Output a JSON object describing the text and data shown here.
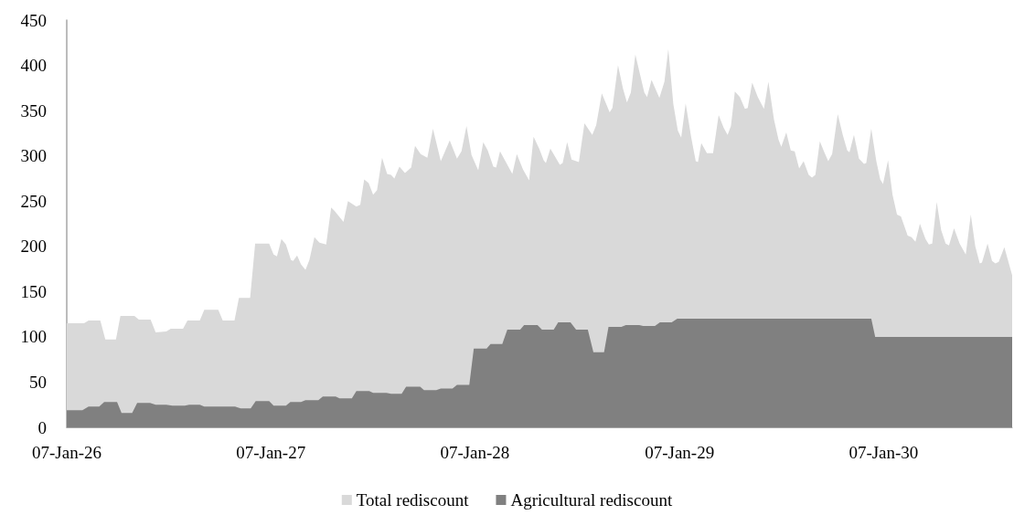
{
  "chart_data": {
    "type": "area",
    "series": [
      {
        "name": "Total rediscount",
        "color": "#d9d9d9",
        "x": [
          "1926-01-07",
          "1926-02-07",
          "1926-02-15",
          "1926-03-08",
          "1926-03-17",
          "1926-04-05",
          "1926-04-13",
          "1926-05-08",
          "1926-05-16",
          "1926-06-06",
          "1926-06-15",
          "1926-07-04",
          "1926-07-12",
          "1926-08-03",
          "1926-08-11",
          "1926-09-02",
          "1926-09-10",
          "1926-10-05",
          "1926-10-13",
          "1926-11-03",
          "1926-11-11",
          "1926-12-01",
          "1926-12-10",
          "1927-01-04",
          "1927-01-12",
          "1927-01-18",
          "1927-01-26",
          "1927-02-03",
          "1927-02-12",
          "1927-02-16",
          "1927-02-23",
          "1927-03-02",
          "1927-03-10",
          "1927-03-17",
          "1927-03-26",
          "1927-04-04",
          "1927-04-16",
          "1927-04-25",
          "1927-05-01",
          "1927-05-17",
          "1927-05-25",
          "1927-06-09",
          "1927-06-16",
          "1927-06-23",
          "1927-07-01",
          "1927-07-09",
          "1927-07-16",
          "1927-07-25",
          "1927-08-03",
          "1927-08-10",
          "1927-08-16",
          "1927-08-25",
          "1927-09-04",
          "1927-09-15",
          "1927-09-22",
          "1927-10-02",
          "1927-10-14",
          "1927-10-24",
          "1927-11-07",
          "1927-11-23",
          "1927-12-06",
          "1927-12-14",
          "1927-12-23",
          "1928-01-01",
          "1928-01-13",
          "1928-01-22",
          "1928-01-30",
          "1928-02-09",
          "1928-02-14",
          "1928-02-21",
          "1928-03-14",
          "1928-03-22",
          "1928-04-02",
          "1928-04-13",
          "1928-04-21",
          "1928-05-01",
          "1928-05-09",
          "1928-05-13",
          "1928-05-21",
          "1928-06-07",
          "1928-06-12",
          "1928-06-20",
          "1928-06-28",
          "1928-07-11",
          "1928-07-21",
          "1928-08-04",
          "1928-08-11",
          "1928-08-21",
          "1928-09-04",
          "1928-09-09",
          "1928-09-19",
          "1928-09-28",
          "1928-10-05",
          "1928-10-12",
          "1928-10-20",
          "1928-11-05",
          "1928-11-10",
          "1928-11-18",
          "1928-12-02",
          "1928-12-11",
          "1928-12-18",
          "1928-12-27",
          "1929-01-04",
          "1929-01-10",
          "1929-01-18",
          "1929-01-28",
          "1929-02-05",
          "1929-02-09",
          "1929-02-15",
          "1929-02-25",
          "1929-03-08",
          "1929-03-18",
          "1929-03-27",
          "1929-04-03",
          "1929-04-09",
          "1929-04-16",
          "1929-04-25",
          "1929-05-04",
          "1929-05-09",
          "1929-05-17",
          "1929-05-27",
          "1929-06-07",
          "1929-06-15",
          "1929-06-25",
          "1929-07-03",
          "1929-07-08",
          "1929-07-17",
          "1929-07-25",
          "1929-08-01",
          "1929-08-09",
          "1929-08-17",
          "1929-08-26",
          "1929-09-01",
          "1929-09-07",
          "1929-09-15",
          "1929-09-23",
          "1929-09-30",
          "1929-10-07",
          "1929-10-17",
          "1929-10-26",
          "1929-11-03",
          "1929-11-07",
          "1929-11-15",
          "1929-11-24",
          "1929-12-03",
          "1929-12-07",
          "1929-12-16",
          "1929-12-25",
          "1930-01-01",
          "1930-01-06",
          "1930-01-15",
          "1930-01-23",
          "1930-01-31",
          "1930-02-07",
          "1930-02-19",
          "1930-02-26",
          "1930-03-05",
          "1930-03-13",
          "1930-03-23",
          "1930-03-29",
          "1930-04-04",
          "1930-04-12",
          "1930-04-20",
          "1930-04-28",
          "1930-05-04",
          "1930-05-13",
          "1930-05-23",
          "1930-06-03",
          "1930-06-12",
          "1930-06-20",
          "1930-06-28",
          "1930-07-02",
          "1930-07-12",
          "1930-07-20",
          "1930-07-26",
          "1930-08-01",
          "1930-08-11",
          "1930-08-25"
        ],
        "values": [
          115,
          115,
          118,
          118,
          97,
          97,
          123,
          123,
          119,
          119,
          105,
          106,
          109,
          109,
          118,
          118,
          130,
          130,
          118,
          118,
          143,
          143,
          203,
          203,
          191,
          189,
          208,
          202,
          185,
          184,
          190,
          180,
          174,
          185,
          210,
          204,
          202,
          243,
          239,
          227,
          250,
          244,
          246,
          274,
          270,
          257,
          262,
          298,
          280,
          279,
          275,
          288,
          281,
          287,
          311,
          302,
          298,
          330,
          294,
          317,
          297,
          305,
          333,
          301,
          284,
          315,
          306,
          288,
          287,
          305,
          280,
          302,
          285,
          273,
          321,
          308,
          295,
          292,
          308,
          290,
          292,
          315,
          296,
          293,
          336,
          323,
          334,
          369,
          348,
          353,
          400,
          374,
          359,
          370,
          412,
          370,
          365,
          384,
          364,
          382,
          418,
          357,
          328,
          320,
          358,
          320,
          294,
          293,
          314,
          303,
          303,
          345,
          331,
          323,
          333,
          371,
          365,
          352,
          353,
          381,
          365,
          352,
          382,
          340,
          318,
          310,
          326,
          306,
          305,
          286,
          294,
          279,
          276,
          279,
          316,
          304,
          294,
          302,
          346,
          323,
          306,
          304,
          323,
          297,
          291,
          292,
          330,
          294,
          274,
          269,
          295,
          257,
          235,
          233,
          212,
          210,
          205,
          225,
          208,
          202,
          203,
          249,
          218,
          203,
          201,
          220,
          203,
          191,
          235,
          200,
          181,
          182,
          203,
          184,
          181,
          183,
          199,
          168
        ]
      },
      {
        "name": "Agricultural rediscount",
        "color": "#808080",
        "x": [
          "1926-01-07",
          "1926-02-04",
          "1926-02-15",
          "1926-03-06",
          "1926-03-15",
          "1926-04-07",
          "1926-04-15",
          "1926-05-04",
          "1926-05-13",
          "1926-06-05",
          "1926-06-15",
          "1926-07-04",
          "1926-07-15",
          "1926-08-06",
          "1926-08-14",
          "1926-09-02",
          "1926-09-10",
          "1926-11-04",
          "1926-11-14",
          "1926-12-02",
          "1926-12-11",
          "1927-01-04",
          "1927-01-12",
          "1927-02-03",
          "1927-02-11",
          "1927-03-02",
          "1927-03-10",
          "1927-04-02",
          "1927-04-10",
          "1927-05-03",
          "1927-05-10",
          "1927-06-01",
          "1927-06-09",
          "1927-07-02",
          "1927-07-09",
          "1927-08-02",
          "1927-08-10",
          "1927-08-29",
          "1927-09-06",
          "1927-10-01",
          "1927-10-08",
          "1927-10-30",
          "1927-11-07",
          "1927-11-28",
          "1927-12-06",
          "1927-12-28",
          "1928-01-05",
          "1928-01-28",
          "1928-02-04",
          "1928-02-25",
          "1928-03-05",
          "1928-03-28",
          "1928-04-04",
          "1928-04-28",
          "1928-05-06",
          "1928-05-27",
          "1928-06-04",
          "1928-06-26",
          "1928-07-06",
          "1928-07-27",
          "1928-08-06",
          "1928-08-25",
          "1928-09-02",
          "1928-09-25",
          "1928-10-03",
          "1928-10-27",
          "1928-11-03",
          "1928-11-24",
          "1928-12-03",
          "1928-12-24",
          "1929-01-03",
          "1929-12-16",
          "1929-12-23",
          "1930-08-25"
        ],
        "values": [
          19,
          19,
          23,
          23,
          28,
          28,
          16,
          16,
          27,
          27,
          25,
          25,
          24,
          24,
          25,
          25,
          23,
          23,
          21,
          21,
          29,
          29,
          24,
          24,
          28,
          28,
          30,
          30,
          34,
          34,
          32,
          32,
          40,
          40,
          38,
          38,
          37,
          37,
          45,
          45,
          41,
          41,
          43,
          43,
          47,
          47,
          87,
          87,
          92,
          92,
          108,
          108,
          113,
          113,
          108,
          108,
          116,
          116,
          108,
          108,
          83,
          83,
          111,
          111,
          113,
          113,
          112,
          112,
          116,
          116,
          120,
          120,
          100,
          100
        ]
      }
    ],
    "xlim": [
      "1926-01-07",
      "1930-08-25"
    ],
    "xticks": [
      {
        "value": "1926-01-07",
        "label": "07-Jan-26"
      },
      {
        "value": "1927-01-07",
        "label": "07-Jan-27"
      },
      {
        "value": "1928-01-07",
        "label": "07-Jan-28"
      },
      {
        "value": "1929-01-07",
        "label": "07-Jan-29"
      },
      {
        "value": "1930-01-07",
        "label": "07-Jan-30"
      }
    ],
    "ylim": [
      0,
      450
    ],
    "yticks": [
      0,
      50,
      100,
      150,
      200,
      250,
      300,
      350,
      400,
      450
    ],
    "grid": false,
    "legend": "bottom"
  }
}
